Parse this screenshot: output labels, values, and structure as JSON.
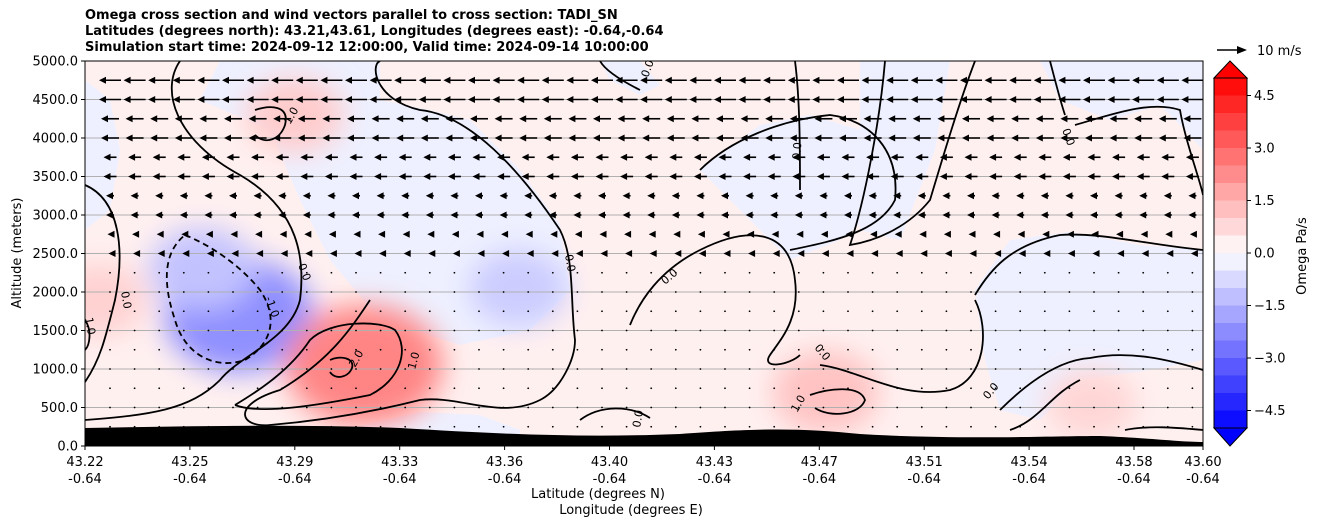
{
  "chart_data": {
    "type": "heatmap",
    "title_lines": [
      "Omega cross section and wind vectors parallel to cross section: TADI_SN",
      "Latitudes (degrees north): 43.21,43.61, Longitudes (degrees east): -0.64,-0.64",
      "Simulation start time: 2024-09-12 12:00:00, Valid time: 2024-09-14 10:00:00"
    ],
    "ylabel": "Altitude (meters)",
    "xlabel_line1": "Latitude (degrees N)",
    "xlabel_line2": "Longitude (degrees E)",
    "ylim": [
      0,
      5000
    ],
    "y_ticks": [
      "0.0",
      "500.0",
      "1000.0",
      "1500.0",
      "2000.0",
      "2500.0",
      "3000.0",
      "3500.0",
      "4000.0",
      "4500.0",
      "5000.0"
    ],
    "y_tick_values": [
      0,
      500,
      1000,
      1500,
      2000,
      2500,
      3000,
      3500,
      4000,
      4500,
      5000
    ],
    "xlim": [
      43.21,
      43.61
    ],
    "x_ticks_lat": [
      "43.22",
      "43.25",
      "43.29",
      "43.33",
      "43.36",
      "43.40",
      "43.43",
      "43.47",
      "43.51",
      "43.54",
      "43.58",
      "43.60"
    ],
    "x_ticks_lon": [
      "-0.64",
      "-0.64",
      "-0.64",
      "-0.64",
      "-0.64",
      "-0.64",
      "-0.64",
      "-0.64",
      "-0.64",
      "-0.64",
      "-0.64",
      "-0.64"
    ],
    "grid": "horizontal",
    "colorbar": {
      "label": "Omega Pa/s",
      "range": [
        -5,
        5
      ],
      "ticks": [
        "4.5",
        "3.0",
        "1.5",
        "0.0",
        "−1.5",
        "−3.0",
        "−4.5"
      ],
      "tick_values": [
        4.5,
        3.0,
        1.5,
        0.0,
        -1.5,
        -3.0,
        -4.5
      ],
      "colors": {
        "low": "#0000ff",
        "mid": "#ffffff",
        "high": "#ff0000"
      }
    },
    "quiver_key": "10 m/s",
    "contour_labels": [
      "0.0",
      "0.0",
      "0.0",
      "0.0",
      "0.0",
      "0.0",
      "0.0",
      "0.0",
      "0.0",
      "1.0",
      "1.0",
      "1.0",
      "1.0",
      "-1.0",
      "2.0",
      "0.0"
    ],
    "omega_features": [
      {
        "lat": 43.265,
        "alt": 1700,
        "omega": -2.2
      },
      {
        "lat": 43.252,
        "alt": 2300,
        "omega": -1.2
      },
      {
        "lat": 43.31,
        "alt": 1050,
        "omega": 2.4
      },
      {
        "lat": 43.285,
        "alt": 4300,
        "omega": 1.0
      },
      {
        "lat": 43.365,
        "alt": 2050,
        "omega": -1.0
      },
      {
        "lat": 43.475,
        "alt": 700,
        "omega": 1.2
      },
      {
        "lat": 43.57,
        "alt": 550,
        "omega": 0.8
      },
      {
        "lat": 43.215,
        "alt": 1900,
        "omega": 0.9
      }
    ]
  }
}
